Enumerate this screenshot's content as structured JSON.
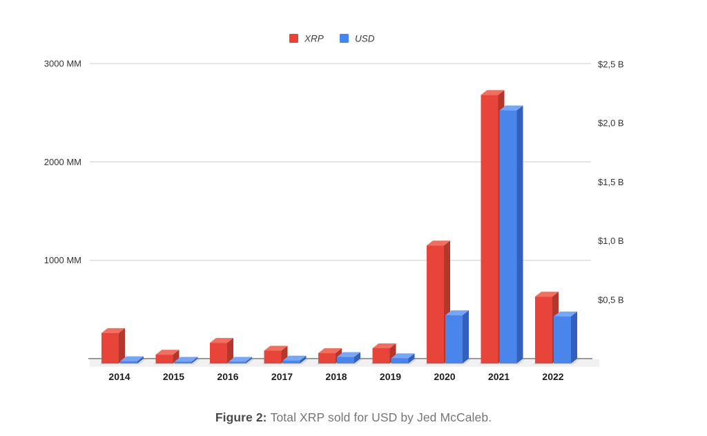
{
  "page": {
    "background": "#ffffff"
  },
  "chart_data": {
    "type": "bar",
    "style": "3d-column",
    "title": "",
    "legend_position": "top-center",
    "grid": "horizontal-left-axis-only",
    "categories": [
      "2014",
      "2015",
      "2016",
      "2017",
      "2018",
      "2019",
      "2020",
      "2021",
      "2022"
    ],
    "series": [
      {
        "name": "XRP",
        "axis": "left",
        "unit": "MM XRP",
        "legend_color": "#ea4335",
        "color_front": "#e8453a",
        "color_top": "#ef6f60",
        "color_side": "#b5372b",
        "values": [
          310,
          90,
          210,
          130,
          105,
          155,
          1200,
          2730,
          680
        ]
      },
      {
        "name": "USD",
        "axis": "right",
        "unit": "$ B",
        "legend_color": "#4285f4",
        "color_front": "#4a85ec",
        "color_top": "#78a6f2",
        "color_side": "#3161bd",
        "values": [
          0.02,
          0.015,
          0.015,
          0.025,
          0.055,
          0.045,
          0.41,
          2.15,
          0.4
        ]
      }
    ],
    "left_axis": {
      "ticks": [
        {
          "value": 3000,
          "label": "3000 MM"
        },
        {
          "value": 2000,
          "label": "2000 MM"
        },
        {
          "value": 1000,
          "label": "1000 MM"
        }
      ],
      "range": [
        0,
        3000
      ]
    },
    "right_axis": {
      "ticks": [
        {
          "value": 2.5,
          "label": "$2,5 B"
        },
        {
          "value": 2.0,
          "label": "$2,0 B"
        },
        {
          "value": 1.5,
          "label": "$1,5 B"
        },
        {
          "value": 1.0,
          "label": "$1,0 B"
        },
        {
          "value": 0.5,
          "label": "$0,5 B"
        }
      ],
      "range": [
        0,
        2.5
      ]
    }
  },
  "caption": {
    "prefix": "Figure 2:",
    "text": "Total XRP sold for USD by Jed McCaleb."
  },
  "colors": {
    "gridline": "#d9d9d9",
    "axis_line": "#7a7a7a",
    "tick_text": "#333333",
    "category_text": "#1c1c1c",
    "legend_text": "#3a3a3a",
    "floor": "#f1f1f1",
    "platform": "#dcdcdc",
    "caption_prefix": "#4a4a4a",
    "caption_text": "#757575"
  }
}
